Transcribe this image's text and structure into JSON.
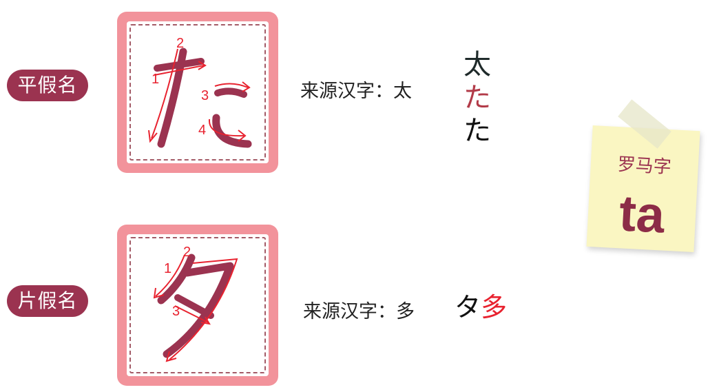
{
  "hiragana": {
    "label": "平假名",
    "char": "た",
    "stroke_numbers": [
      "1",
      "2",
      "3",
      "4"
    ],
    "source_text": "来源汉字：太",
    "origin_chars": [
      "太",
      "た",
      "た"
    ]
  },
  "katakana": {
    "label": "片假名",
    "char": "タ",
    "stroke_numbers": [
      "1",
      "2",
      "3"
    ],
    "source_text": "来源汉字：多",
    "origin_chars": [
      "タ",
      "多"
    ]
  },
  "romaji": {
    "label": "罗马字",
    "value": "ta"
  },
  "colors": {
    "pill": "#9b3350",
    "card_border": "#f2939b",
    "glyph": "#9b3350",
    "stroke_guide": "#e8222f"
  }
}
